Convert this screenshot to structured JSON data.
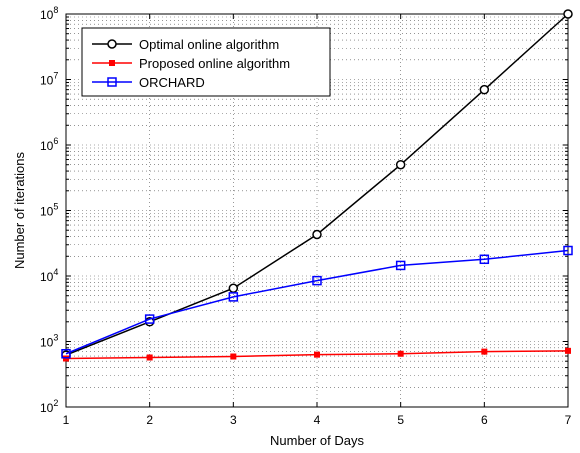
{
  "chart_data": {
    "type": "line",
    "xlabel": "Number of Days",
    "ylabel": "Number of iterations",
    "x": [
      1,
      2,
      3,
      4,
      5,
      6,
      7
    ],
    "xlim": [
      1,
      7
    ],
    "ylim": [
      100,
      100000000
    ],
    "yscale": "log",
    "grid": true,
    "legend_position": "top-left",
    "x_ticks": [
      "1",
      "2",
      "3",
      "4",
      "5",
      "6",
      "7"
    ],
    "y_ticks": [
      {
        "base": "10",
        "exp": "2"
      },
      {
        "base": "10",
        "exp": "3"
      },
      {
        "base": "10",
        "exp": "4"
      },
      {
        "base": "10",
        "exp": "5"
      },
      {
        "base": "10",
        "exp": "6"
      },
      {
        "base": "10",
        "exp": "7"
      },
      {
        "base": "10",
        "exp": "8"
      }
    ],
    "series": [
      {
        "name": "Optimal online algorithm",
        "color": "#000000",
        "marker": "circle",
        "values": [
          620,
          2000,
          6500,
          43000,
          500000,
          7000000,
          100000000
        ]
      },
      {
        "name": "Proposed online algorithm",
        "color": "#ff0000",
        "marker": "filled-square",
        "values": [
          550,
          570,
          590,
          630,
          650,
          700,
          720
        ]
      },
      {
        "name": "ORCHARD",
        "color": "#0000ff",
        "marker": "square",
        "values": [
          650,
          2200,
          4800,
          8500,
          14500,
          18000,
          24500
        ]
      }
    ]
  }
}
